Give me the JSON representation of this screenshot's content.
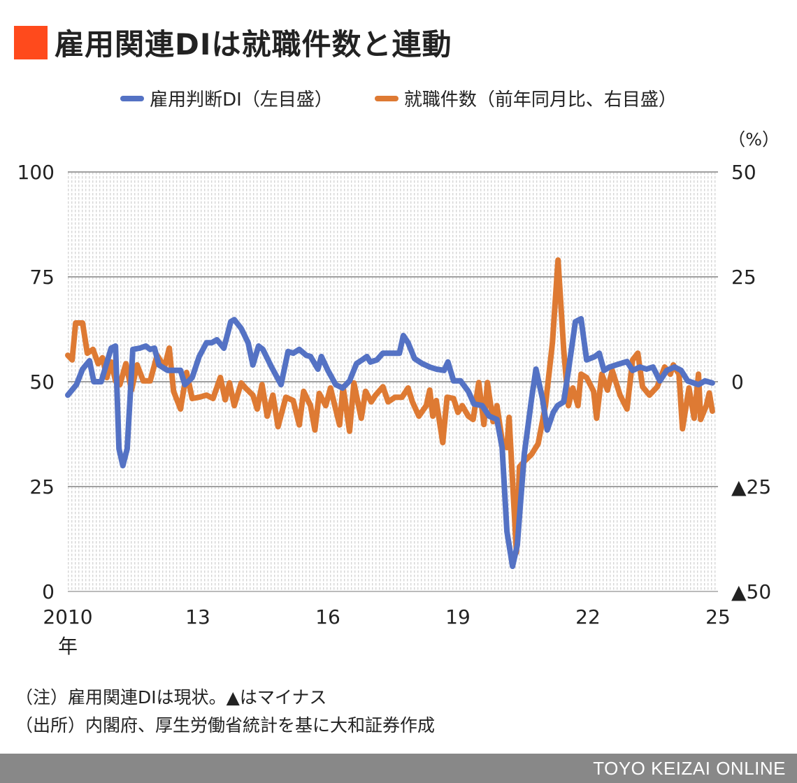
{
  "title": "雇用関連DIは就職件数と連動",
  "colors": {
    "title_mark": "#ff4a1c",
    "di": "#5472c4",
    "jobs": "#de7a33",
    "grid": "#a0a0a0"
  },
  "notes": [
    "（注）雇用関連DIは現状。▲はマイナス",
    "（出所）内閣府、厚生労働省統計を基に大和証券作成"
  ],
  "footer": "TOYO KEIZAI ONLINE",
  "chart_data": {
    "type": "line",
    "legend": [
      "雇用判断DI（左目盛）",
      "就職件数（前年同月比、右目盛）"
    ],
    "legend_position": "top",
    "right_unit": "（%）",
    "xlim": [
      2010,
      2025
    ],
    "x_ticks": [
      2010,
      2013,
      2016,
      2019,
      2022,
      2025
    ],
    "x_tick_labels": [
      "2010",
      "13",
      "16",
      "19",
      "22",
      "25"
    ],
    "x_sublabel": "年",
    "ylim_left": [
      0,
      100
    ],
    "y_ticks_left": [
      "100",
      "75",
      "50",
      "25",
      "0"
    ],
    "ylim_right": [
      -50,
      50
    ],
    "y_ticks_right": [
      "50",
      "25",
      "0",
      "▲25",
      "▲50"
    ],
    "grid": true,
    "series": [
      {
        "name": "雇用判断DI（左目盛）",
        "axis": "left",
        "points": [
          [
            2010.0,
            46.8
          ],
          [
            2010.2,
            49.3
          ],
          [
            2010.34,
            53
          ],
          [
            2010.5,
            55
          ],
          [
            2010.6,
            50
          ],
          [
            2010.77,
            50
          ],
          [
            2011.0,
            58
          ],
          [
            2011.1,
            58.5
          ],
          [
            2011.18,
            34
          ],
          [
            2011.27,
            30
          ],
          [
            2011.37,
            34
          ],
          [
            2011.5,
            57.7
          ],
          [
            2011.66,
            58
          ],
          [
            2011.8,
            58.5
          ],
          [
            2011.9,
            57.7
          ],
          [
            2012.0,
            58
          ],
          [
            2012.1,
            54
          ],
          [
            2012.3,
            52.7
          ],
          [
            2012.6,
            52.7
          ],
          [
            2012.7,
            49.3
          ],
          [
            2012.87,
            51
          ],
          [
            2013.03,
            56
          ],
          [
            2013.2,
            59.3
          ],
          [
            2013.32,
            59.3
          ],
          [
            2013.44,
            60
          ],
          [
            2013.6,
            58
          ],
          [
            2013.76,
            64.3
          ],
          [
            2013.84,
            64.8
          ],
          [
            2014.0,
            62.7
          ],
          [
            2014.16,
            59.3
          ],
          [
            2014.27,
            54
          ],
          [
            2014.4,
            58.5
          ],
          [
            2014.5,
            57.7
          ],
          [
            2014.7,
            53.5
          ],
          [
            2014.92,
            49.3
          ],
          [
            2015.08,
            57.2
          ],
          [
            2015.2,
            56.8
          ],
          [
            2015.34,
            57.7
          ],
          [
            2015.5,
            56.3
          ],
          [
            2015.6,
            56
          ],
          [
            2015.77,
            53
          ],
          [
            2015.85,
            56
          ],
          [
            2016.0,
            52.7
          ],
          [
            2016.18,
            49.3
          ],
          [
            2016.34,
            48.5
          ],
          [
            2016.5,
            50.2
          ],
          [
            2016.66,
            54.3
          ],
          [
            2016.79,
            55.2
          ],
          [
            2016.9,
            56
          ],
          [
            2016.98,
            54.7
          ],
          [
            2017.13,
            55.2
          ],
          [
            2017.27,
            56.8
          ],
          [
            2017.45,
            56.8
          ],
          [
            2017.65,
            56.8
          ],
          [
            2017.74,
            61
          ],
          [
            2017.85,
            59.3
          ],
          [
            2018.0,
            55.5
          ],
          [
            2018.18,
            54.3
          ],
          [
            2018.35,
            53.5
          ],
          [
            2018.5,
            53
          ],
          [
            2018.68,
            52.7
          ],
          [
            2018.77,
            54.7
          ],
          [
            2018.9,
            50.2
          ],
          [
            2019.06,
            50.2
          ],
          [
            2019.24,
            47.7
          ],
          [
            2019.37,
            44.7
          ],
          [
            2019.56,
            44.3
          ],
          [
            2019.72,
            41.8
          ],
          [
            2019.9,
            41
          ],
          [
            2020.02,
            34.3
          ],
          [
            2020.13,
            14.3
          ],
          [
            2020.26,
            6
          ],
          [
            2020.37,
            11
          ],
          [
            2020.53,
            32.7
          ],
          [
            2020.7,
            46
          ],
          [
            2020.8,
            53
          ],
          [
            2020.95,
            46
          ],
          [
            2021.06,
            38.5
          ],
          [
            2021.2,
            42.7
          ],
          [
            2021.3,
            44.3
          ],
          [
            2021.44,
            45.2
          ],
          [
            2021.55,
            52.7
          ],
          [
            2021.71,
            64.3
          ],
          [
            2021.84,
            65
          ],
          [
            2021.97,
            55.2
          ],
          [
            2022.16,
            56
          ],
          [
            2022.26,
            56.8
          ],
          [
            2022.37,
            52.7
          ],
          [
            2022.5,
            53.5
          ],
          [
            2022.74,
            54.3
          ],
          [
            2022.9,
            54.8
          ],
          [
            2023.03,
            52.7
          ],
          [
            2023.2,
            53.5
          ],
          [
            2023.35,
            53
          ],
          [
            2023.5,
            53.5
          ],
          [
            2023.66,
            50.2
          ],
          [
            2023.82,
            52.7
          ],
          [
            2024.0,
            53.5
          ],
          [
            2024.15,
            52.7
          ],
          [
            2024.3,
            50.2
          ],
          [
            2024.55,
            49.3
          ],
          [
            2024.7,
            50.2
          ],
          [
            2024.87,
            49.7
          ]
        ]
      },
      {
        "name": "就職件数（前年同月比、右目盛）",
        "axis": "right",
        "points": [
          [
            2010.0,
            6.3
          ],
          [
            2010.1,
            5.2
          ],
          [
            2010.18,
            14
          ],
          [
            2010.34,
            14
          ],
          [
            2010.45,
            6.8
          ],
          [
            2010.58,
            7.7
          ],
          [
            2010.7,
            4.3
          ],
          [
            2010.8,
            5.7
          ],
          [
            2010.9,
            1
          ],
          [
            2011.0,
            4.7
          ],
          [
            2011.1,
            0.2
          ],
          [
            2011.2,
            -0.7
          ],
          [
            2011.34,
            4.3
          ],
          [
            2011.47,
            -2
          ],
          [
            2011.6,
            4
          ],
          [
            2011.74,
            0.2
          ],
          [
            2011.9,
            0.2
          ],
          [
            2012.06,
            6.3
          ],
          [
            2012.23,
            3.5
          ],
          [
            2012.34,
            8
          ],
          [
            2012.44,
            -2.3
          ],
          [
            2012.6,
            -6.5
          ],
          [
            2012.74,
            2.2
          ],
          [
            2012.87,
            -4
          ],
          [
            2013.03,
            -3.7
          ],
          [
            2013.2,
            -3.2
          ],
          [
            2013.35,
            -4
          ],
          [
            2013.52,
            1
          ],
          [
            2013.63,
            -4.3
          ],
          [
            2013.73,
            -0.3
          ],
          [
            2013.84,
            -5.7
          ],
          [
            2014.0,
            -0.3
          ],
          [
            2014.1,
            -1.5
          ],
          [
            2014.27,
            -3.2
          ],
          [
            2014.37,
            -6.5
          ],
          [
            2014.48,
            -0.7
          ],
          [
            2014.6,
            -8.2
          ],
          [
            2014.73,
            -3.2
          ],
          [
            2014.85,
            -10.7
          ],
          [
            2015.03,
            -3.7
          ],
          [
            2015.2,
            -4.5
          ],
          [
            2015.34,
            -10.3
          ],
          [
            2015.44,
            -2.3
          ],
          [
            2015.6,
            -5.7
          ],
          [
            2015.7,
            -11.5
          ],
          [
            2015.8,
            -2.8
          ],
          [
            2015.95,
            -5.7
          ],
          [
            2016.06,
            -1.5
          ],
          [
            2016.27,
            -10.3
          ],
          [
            2016.35,
            -1.2
          ],
          [
            2016.5,
            -11.8
          ],
          [
            2016.6,
            -0.3
          ],
          [
            2016.77,
            -8.7
          ],
          [
            2016.87,
            -2.3
          ],
          [
            2017.0,
            -4.8
          ],
          [
            2017.1,
            -3.2
          ],
          [
            2017.27,
            -1.2
          ],
          [
            2017.39,
            -4.8
          ],
          [
            2017.55,
            -3.7
          ],
          [
            2017.71,
            -3.7
          ],
          [
            2017.85,
            -1.5
          ],
          [
            2017.95,
            -4.8
          ],
          [
            2018.1,
            -8.2
          ],
          [
            2018.27,
            -5.7
          ],
          [
            2018.35,
            -2
          ],
          [
            2018.42,
            -8.2
          ],
          [
            2018.5,
            -4.5
          ],
          [
            2018.65,
            -14.5
          ],
          [
            2018.75,
            -3.7
          ],
          [
            2018.9,
            -4
          ],
          [
            2019.0,
            -7.3
          ],
          [
            2019.1,
            -5.7
          ],
          [
            2019.24,
            -8.2
          ],
          [
            2019.35,
            -9
          ],
          [
            2019.48,
            -0.2
          ],
          [
            2019.6,
            -10.2
          ],
          [
            2019.68,
            -0.2
          ],
          [
            2019.81,
            -9.5
          ],
          [
            2019.9,
            -5.7
          ],
          [
            2020.02,
            -14
          ],
          [
            2020.13,
            -15.7
          ],
          [
            2020.18,
            -8.5
          ],
          [
            2020.35,
            -40.7
          ],
          [
            2020.42,
            -20.3
          ],
          [
            2020.53,
            -19
          ],
          [
            2020.7,
            -17.3
          ],
          [
            2020.85,
            -14.8
          ],
          [
            2021.02,
            -5.7
          ],
          [
            2021.18,
            9.3
          ],
          [
            2021.31,
            29
          ],
          [
            2021.44,
            7.7
          ],
          [
            2021.55,
            -5.7
          ],
          [
            2021.65,
            -1.5
          ],
          [
            2021.77,
            -5.7
          ],
          [
            2021.84,
            1.8
          ],
          [
            2021.97,
            1
          ],
          [
            2022.13,
            -2.3
          ],
          [
            2022.2,
            -8.7
          ],
          [
            2022.32,
            1.8
          ],
          [
            2022.45,
            -2
          ],
          [
            2022.56,
            2.7
          ],
          [
            2022.74,
            -3.2
          ],
          [
            2022.9,
            -6.5
          ],
          [
            2023.03,
            5.2
          ],
          [
            2023.15,
            6.8
          ],
          [
            2023.26,
            -1.2
          ],
          [
            2023.42,
            -3.2
          ],
          [
            2023.6,
            -1.2
          ],
          [
            2023.77,
            3.5
          ],
          [
            2023.9,
            1.8
          ],
          [
            2023.97,
            4
          ],
          [
            2024.1,
            1.8
          ],
          [
            2024.18,
            -11.2
          ],
          [
            2024.33,
            -1.5
          ],
          [
            2024.45,
            -8.7
          ],
          [
            2024.55,
            1.8
          ],
          [
            2024.6,
            -9
          ],
          [
            2024.73,
            -5.7
          ],
          [
            2024.8,
            -2.7
          ],
          [
            2024.87,
            -7
          ]
        ]
      }
    ]
  }
}
